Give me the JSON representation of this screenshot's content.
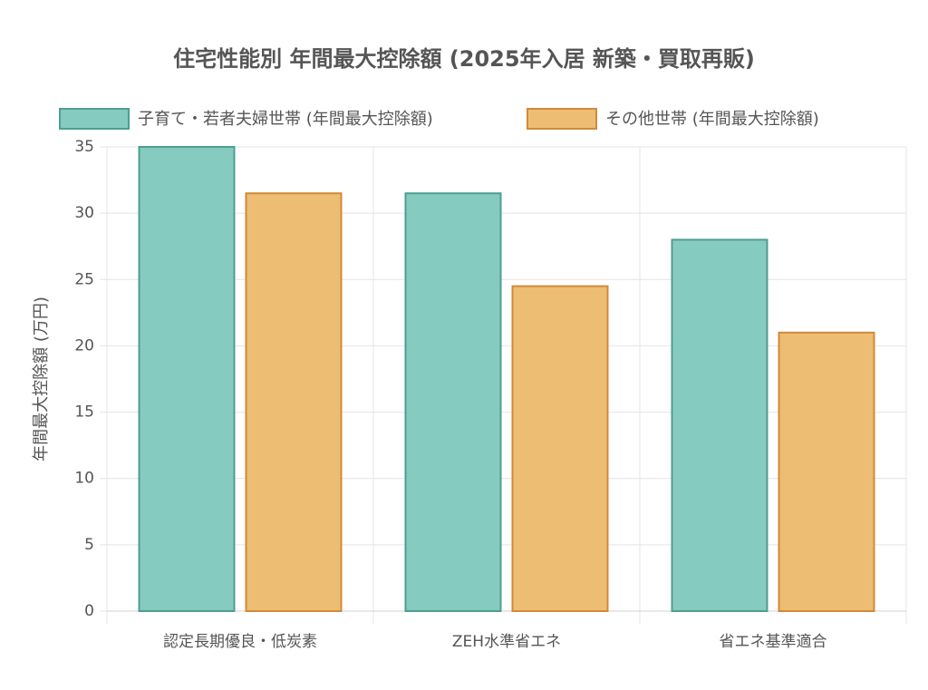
{
  "chart_data": {
    "type": "bar",
    "title": "住宅性能別 年間最大控除額 (2025年入居 新築・買取再販)",
    "y_label": "年間最大控除額 (万円)",
    "categories": [
      "認定長期優良・低炭素",
      "ZEH水準省エネ",
      "省エネ基準適合"
    ],
    "series": [
      {
        "name": "子育て・若者夫婦世帯 (年間最大控除額)",
        "color": "#86cbbf",
        "border_color": "#4f9e90",
        "values": [
          35,
          31.5,
          28
        ]
      },
      {
        "name": "その他世帯 (年間最大控除額)",
        "color": "#edbd73",
        "border_color": "#d08a3a",
        "values": [
          31.5,
          24.5,
          21
        ]
      }
    ],
    "ylim": [
      0,
      35
    ],
    "yticks": [
      0,
      5,
      10,
      15,
      20,
      25,
      30,
      35
    ],
    "grid": true,
    "legend": "top"
  }
}
